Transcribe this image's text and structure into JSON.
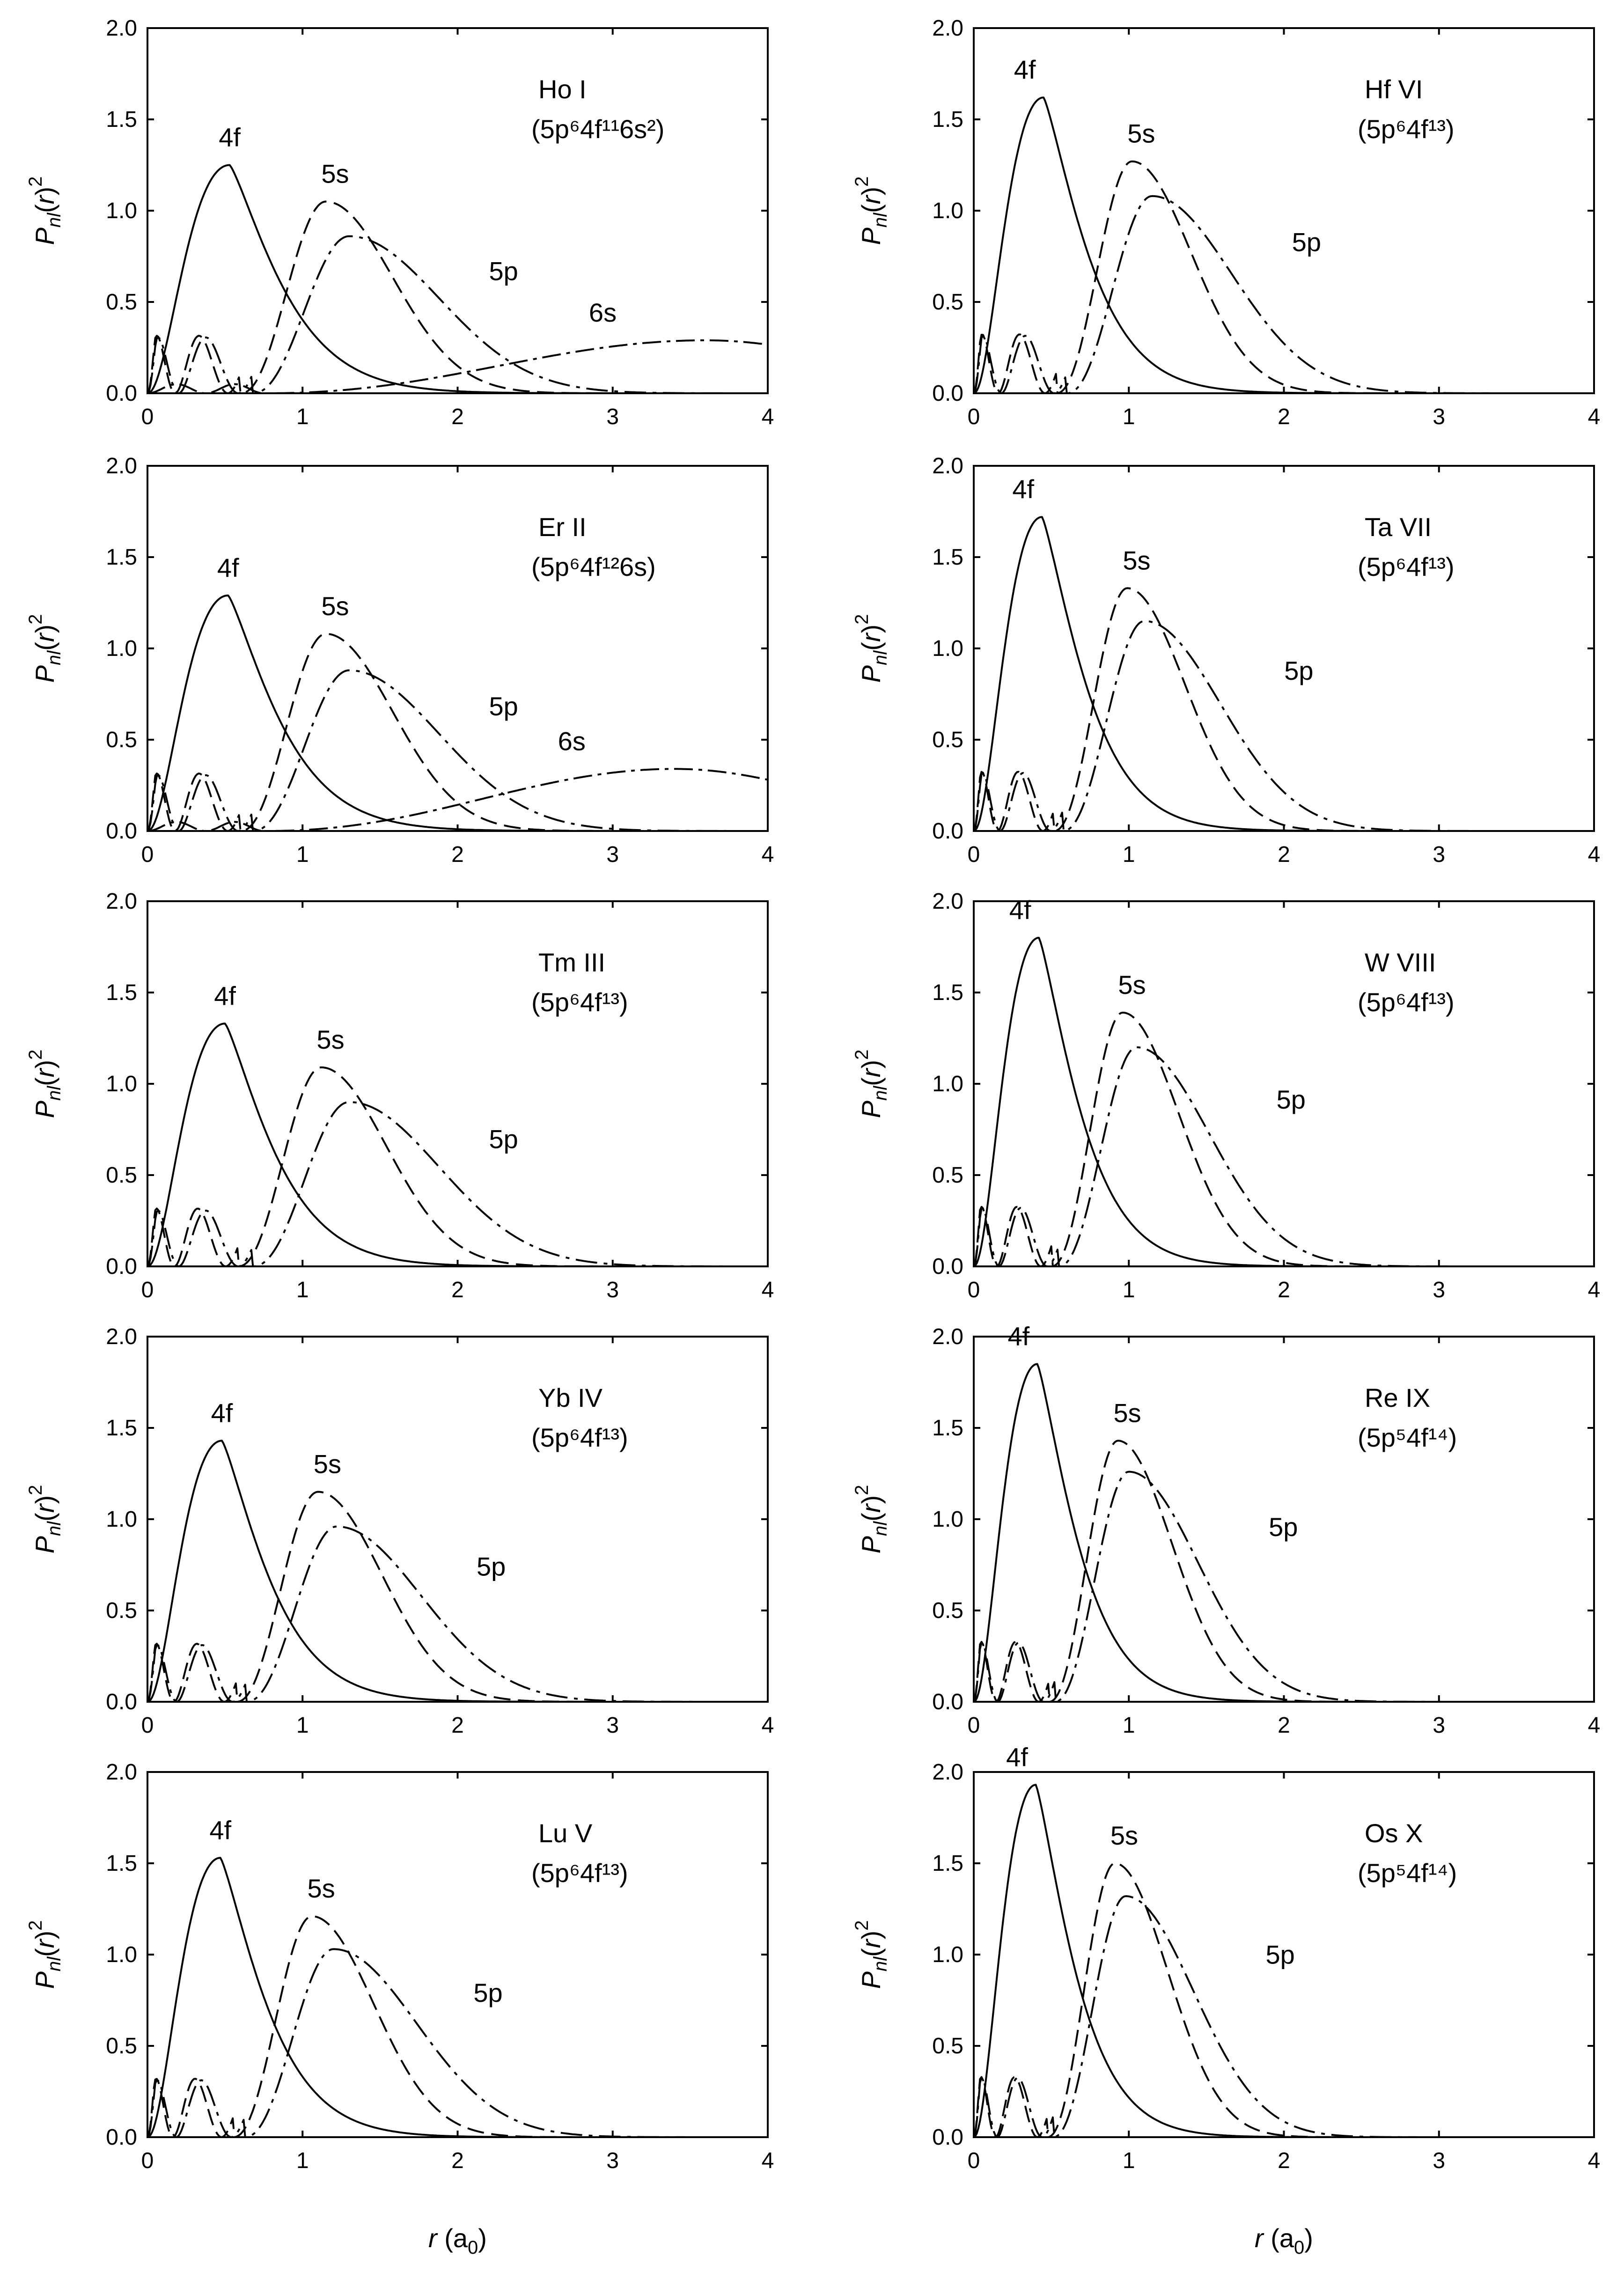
{
  "figure": {
    "ylabel": "P_nl(r)^2",
    "xlabel_var": "r",
    "xlabel_unit_base": "a",
    "xlabel_unit_sub": "0"
  },
  "chart_data": [
    {
      "type": "line",
      "ion": "Ho I",
      "config": "(5p⁶4f¹¹6s²)",
      "title": "Ho I (5p⁶4f¹¹6s²)",
      "xlabel": "",
      "ylabel": "Pnl(r)²",
      "xlim": [
        0,
        4
      ],
      "ylim": [
        0,
        2
      ],
      "xticks": [
        "0",
        "1",
        "2",
        "3",
        "4"
      ],
      "yticks": [
        "0.0",
        "0.5",
        "1.0",
        "1.5",
        "2.0"
      ],
      "series": [
        {
          "name": "4f",
          "peak_r": 0.53,
          "peak_value": 1.25
        },
        {
          "name": "5s",
          "peak_r": 1.15,
          "peak_value": 1.05
        },
        {
          "name": "5p",
          "peak_r": 1.3,
          "peak_value": 0.86
        },
        {
          "name": "6s",
          "peak_r": 3.6,
          "peak_value": 0.29
        }
      ],
      "labels": [
        "4f",
        "5s",
        "5p",
        "6s"
      ]
    },
    {
      "type": "line",
      "ion": "Hf VI",
      "config": "(5p⁶4f¹³)",
      "title": "Hf VI (5p⁶4f¹³)",
      "xlabel": "",
      "ylabel": "Pnl(r)²",
      "xlim": [
        0,
        4
      ],
      "ylim": [
        0,
        2
      ],
      "xticks": [
        "0",
        "1",
        "2",
        "3",
        "4"
      ],
      "yticks": [
        "0.0",
        "0.5",
        "1.0",
        "1.5",
        "2.0"
      ],
      "series": [
        {
          "name": "4f",
          "peak_r": 0.45,
          "peak_value": 1.62
        },
        {
          "name": "5s",
          "peak_r": 1.02,
          "peak_value": 1.27
        },
        {
          "name": "5p",
          "peak_r": 1.15,
          "peak_value": 1.08
        }
      ],
      "labels": [
        "4f",
        "5s",
        "5p"
      ]
    },
    {
      "type": "line",
      "ion": "Er II",
      "config": "(5p⁶4f¹²6s)",
      "title": "Er II (5p⁶4f¹²6s)",
      "xlabel": "",
      "ylabel": "Pnl(r)²",
      "xlim": [
        0,
        4
      ],
      "ylim": [
        0,
        2
      ],
      "xticks": [
        "0",
        "1",
        "2",
        "3",
        "4"
      ],
      "yticks": [
        "0.0",
        "0.5",
        "1.0",
        "1.5",
        "2.0"
      ],
      "series": [
        {
          "name": "4f",
          "peak_r": 0.52,
          "peak_value": 1.29
        },
        {
          "name": "5s",
          "peak_r": 1.15,
          "peak_value": 1.08
        },
        {
          "name": "5p",
          "peak_r": 1.3,
          "peak_value": 0.88
        },
        {
          "name": "6s",
          "peak_r": 3.4,
          "peak_value": 0.34
        }
      ],
      "labels": [
        "4f",
        "5s",
        "5p",
        "6s"
      ]
    },
    {
      "type": "line",
      "ion": "Ta VII",
      "config": "(5p⁶4f¹³)",
      "title": "Ta VII (5p⁶4f¹³)",
      "xlabel": "",
      "ylabel": "Pnl(r)²",
      "xlim": [
        0,
        4
      ],
      "ylim": [
        0,
        2
      ],
      "xticks": [
        "0",
        "1",
        "2",
        "3",
        "4"
      ],
      "yticks": [
        "0.0",
        "0.5",
        "1.0",
        "1.5",
        "2.0"
      ],
      "series": [
        {
          "name": "4f",
          "peak_r": 0.44,
          "peak_value": 1.72
        },
        {
          "name": "5s",
          "peak_r": 0.99,
          "peak_value": 1.33
        },
        {
          "name": "5p",
          "peak_r": 1.1,
          "peak_value": 1.15
        }
      ],
      "labels": [
        "4f",
        "5s",
        "5p"
      ]
    },
    {
      "type": "line",
      "ion": "Tm III",
      "config": "(5p⁶4f¹³)",
      "title": "Tm III (5p⁶4f¹³)",
      "xlabel": "",
      "ylabel": "Pnl(r)²",
      "xlim": [
        0,
        4
      ],
      "ylim": [
        0,
        2
      ],
      "xticks": [
        "0",
        "1",
        "2",
        "3",
        "4"
      ],
      "yticks": [
        "0.0",
        "0.5",
        "1.0",
        "1.5",
        "2.0"
      ],
      "series": [
        {
          "name": "4f",
          "peak_r": 0.5,
          "peak_value": 1.33
        },
        {
          "name": "5s",
          "peak_r": 1.12,
          "peak_value": 1.09
        },
        {
          "name": "5p",
          "peak_r": 1.3,
          "peak_value": 0.9
        }
      ],
      "labels": [
        "4f",
        "5s",
        "5p"
      ]
    },
    {
      "type": "line",
      "ion": "W VIII",
      "config": "(5p⁶4f¹³)",
      "title": "W VIII (5p⁶4f¹³)",
      "xlabel": "",
      "ylabel": "Pnl(r)²",
      "xlim": [
        0,
        4
      ],
      "ylim": [
        0,
        2
      ],
      "xticks": [
        "0",
        "1",
        "2",
        "3",
        "4"
      ],
      "yticks": [
        "0.0",
        "0.5",
        "1.0",
        "1.5",
        "2.0"
      ],
      "series": [
        {
          "name": "4f",
          "peak_r": 0.42,
          "peak_value": 1.8
        },
        {
          "name": "5s",
          "peak_r": 0.96,
          "peak_value": 1.39
        },
        {
          "name": "5p",
          "peak_r": 1.05,
          "peak_value": 1.2
        }
      ],
      "labels": [
        "4f",
        "5s",
        "5p"
      ]
    },
    {
      "type": "line",
      "ion": "Yb IV",
      "config": "(5p⁶4f¹³)",
      "title": "Yb IV (5p⁶4f¹³)",
      "xlabel": "",
      "ylabel": "Pnl(r)²",
      "xlim": [
        0,
        4
      ],
      "ylim": [
        0,
        2
      ],
      "xticks": [
        "0",
        "1",
        "2",
        "3",
        "4"
      ],
      "yticks": [
        "0.0",
        "0.5",
        "1.0",
        "1.5",
        "2.0"
      ],
      "series": [
        {
          "name": "4f",
          "peak_r": 0.48,
          "peak_value": 1.43
        },
        {
          "name": "5s",
          "peak_r": 1.1,
          "peak_value": 1.15
        },
        {
          "name": "5p",
          "peak_r": 1.22,
          "peak_value": 0.96
        }
      ],
      "labels": [
        "4f",
        "5s",
        "5p"
      ]
    },
    {
      "type": "line",
      "ion": "Re IX",
      "config": "(5p⁵4f¹⁴)",
      "title": "Re IX (5p⁵4f¹⁴)",
      "xlabel": "",
      "ylabel": "Pnl(r)²",
      "xlim": [
        0,
        4
      ],
      "ylim": [
        0,
        2
      ],
      "xticks": [
        "0",
        "1",
        "2",
        "3",
        "4"
      ],
      "yticks": [
        "0.0",
        "0.5",
        "1.0",
        "1.5",
        "2.0"
      ],
      "series": [
        {
          "name": "4f",
          "peak_r": 0.41,
          "peak_value": 1.85
        },
        {
          "name": "5s",
          "peak_r": 0.93,
          "peak_value": 1.43
        },
        {
          "name": "5p",
          "peak_r": 1.0,
          "peak_value": 1.26
        }
      ],
      "labels": [
        "4f",
        "5s",
        "5p"
      ]
    },
    {
      "type": "line",
      "ion": "Lu V",
      "config": "(5p⁶4f¹³)",
      "title": "Lu V (5p⁶4f¹³)",
      "xlabel": "r (a₀)",
      "ylabel": "Pnl(r)²",
      "xlim": [
        0,
        4
      ],
      "ylim": [
        0,
        2
      ],
      "xticks": [
        "0",
        "1",
        "2",
        "3",
        "4"
      ],
      "yticks": [
        "0.0",
        "0.5",
        "1.0",
        "1.5",
        "2.0"
      ],
      "series": [
        {
          "name": "4f",
          "peak_r": 0.47,
          "peak_value": 1.53
        },
        {
          "name": "5s",
          "peak_r": 1.06,
          "peak_value": 1.21
        },
        {
          "name": "5p",
          "peak_r": 1.2,
          "peak_value": 1.03
        }
      ],
      "labels": [
        "4f",
        "5s",
        "5p"
      ]
    },
    {
      "type": "line",
      "ion": "Os X",
      "config": "(5p⁵4f¹⁴)",
      "title": "Os X (5p⁵4f¹⁴)",
      "xlabel": "r (a₀)",
      "ylabel": "Pnl(r)²",
      "xlim": [
        0,
        4
      ],
      "ylim": [
        0,
        2
      ],
      "xticks": [
        "0",
        "1",
        "2",
        "3",
        "4"
      ],
      "yticks": [
        "0.0",
        "0.5",
        "1.0",
        "1.5",
        "2.0"
      ],
      "series": [
        {
          "name": "4f",
          "peak_r": 0.4,
          "peak_value": 1.93
        },
        {
          "name": "5s",
          "peak_r": 0.91,
          "peak_value": 1.5
        },
        {
          "name": "5p",
          "peak_r": 0.98,
          "peak_value": 1.32
        }
      ],
      "labels": [
        "4f",
        "5s",
        "5p"
      ]
    }
  ]
}
